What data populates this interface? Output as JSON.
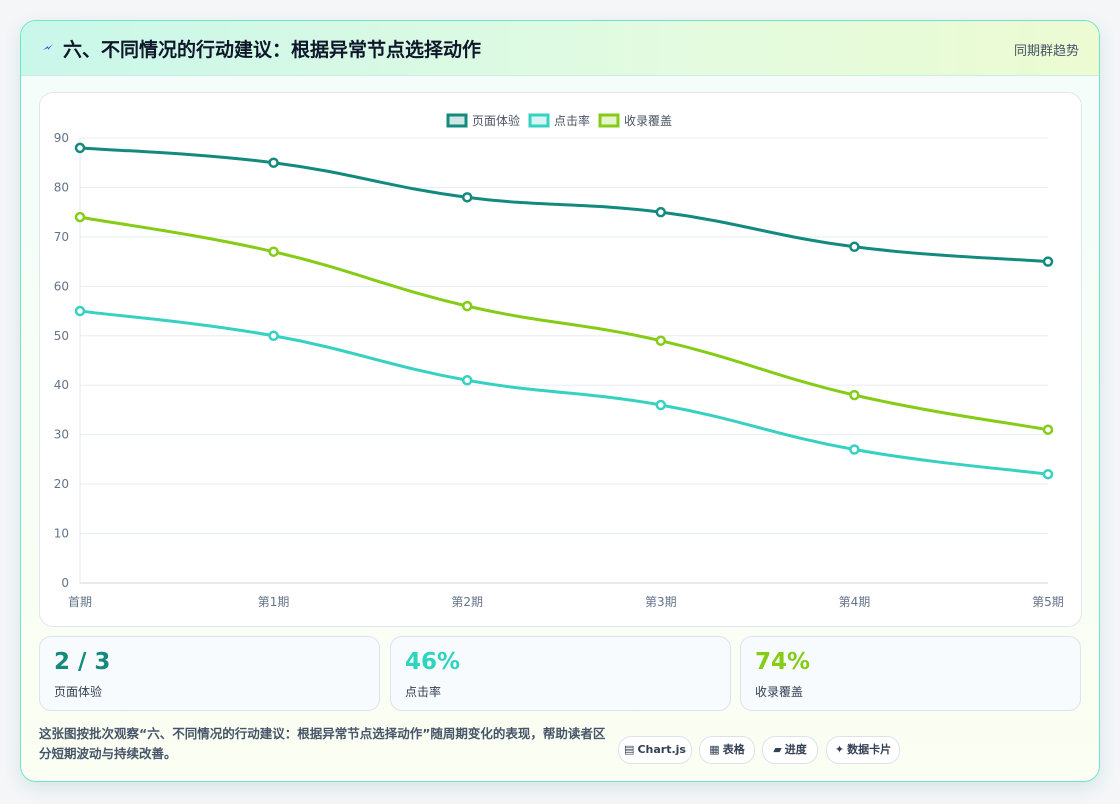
{
  "header": {
    "icon": "lightning-icon",
    "title": "六、不同情况的行动建议：根据异常节点选择动作",
    "link": "同期群趋势"
  },
  "colors": {
    "series1": "#138a7e",
    "series2": "#36d1c1",
    "series3": "#84cc16"
  },
  "chart_data": {
    "type": "line",
    "categories": [
      "首期",
      "第1期",
      "第2期",
      "第3期",
      "第4期",
      "第5期"
    ],
    "series": [
      {
        "name": "页面体验",
        "values": [
          88,
          85,
          78,
          75,
          68,
          65
        ]
      },
      {
        "name": "点击率",
        "values": [
          55,
          50,
          41,
          36,
          27,
          22
        ]
      },
      {
        "name": "收录覆盖",
        "values": [
          74,
          67,
          56,
          49,
          38,
          31
        ]
      }
    ],
    "yticks": [
      0,
      10,
      20,
      30,
      40,
      50,
      60,
      70,
      80,
      90
    ],
    "ylim": [
      0,
      90
    ],
    "grid": true,
    "legend": "top-center"
  },
  "kpis": [
    {
      "value": "2 / 3",
      "label": "页面体验",
      "color": "#138a7e"
    },
    {
      "value": "46%",
      "label": "点击率",
      "color": "#2dd4bf"
    },
    {
      "value": "74%",
      "label": "收录覆盖",
      "color": "#84cc16"
    }
  ],
  "footer": {
    "text": "这张图按批次观察“六、不同情况的行动建议：根据异常节点选择动作”随周期变化的表现，帮助读者区分短期波动与持续改善。",
    "tags": [
      {
        "icon": "chart-icon",
        "glyph": "▤",
        "label": "Chart.js"
      },
      {
        "icon": "table-icon",
        "glyph": "▦",
        "label": "表格"
      },
      {
        "icon": "progress-icon",
        "glyph": "▰",
        "label": "进度"
      },
      {
        "icon": "sparkle-icon",
        "glyph": "✦",
        "label": "数据卡片"
      }
    ]
  }
}
